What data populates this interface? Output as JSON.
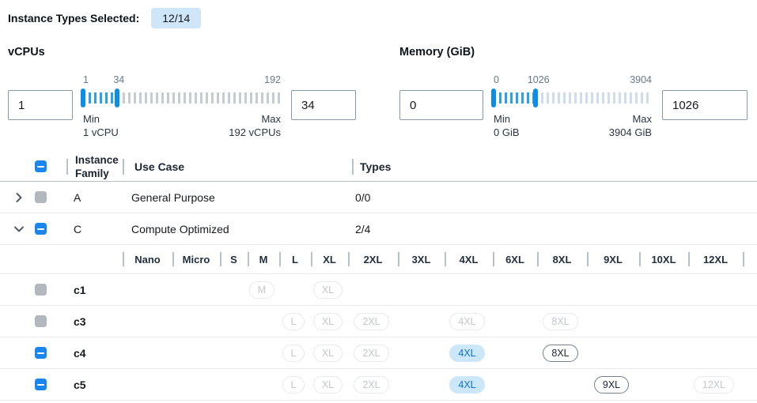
{
  "header": {
    "label": "Instance Types Selected:",
    "badge": "12/14"
  },
  "filters": [
    {
      "id": "vcpus",
      "title": "vCPUs",
      "low_input": "1",
      "high_input": "34",
      "range": {
        "min": 1,
        "max": 192,
        "low": 1,
        "high": 34
      },
      "scale": {
        "low": "1",
        "high": "34",
        "max": "192"
      },
      "min_label": "Min",
      "min_value": "1 vCPU",
      "max_label": "Max",
      "max_value": "192 vCPUs"
    },
    {
      "id": "memory",
      "title": "Memory (GiB)",
      "low_input": "0",
      "high_input": "1026",
      "range": {
        "min": 0,
        "max": 3904,
        "low": 0,
        "high": 1026
      },
      "scale": {
        "low": "0",
        "high": "1026",
        "max": "3904"
      },
      "min_label": "Min",
      "min_value": "0 GiB",
      "max_label": "Max",
      "max_value": "3904 GiB"
    }
  ],
  "table": {
    "columns": {
      "family": "Instance Family",
      "use_case": "Use Case",
      "types": "Types"
    },
    "size_columns": [
      "Nano",
      "Micro",
      "S",
      "M",
      "L",
      "XL",
      "2XL",
      "3XL",
      "4XL",
      "6XL",
      "8XL",
      "9XL",
      "10XL",
      "12XL"
    ],
    "rows": [
      {
        "type": "family",
        "name": "A",
        "use_case": "General Purpose",
        "types": "0/0",
        "expanded": false,
        "checkbox": "disabled"
      },
      {
        "type": "family",
        "name": "C",
        "use_case": "Compute Optimized",
        "types": "2/4",
        "expanded": true,
        "checkbox": "indeterminate"
      },
      {
        "type": "size_header"
      },
      {
        "type": "instance",
        "name": "c1",
        "checkbox": "disabled",
        "pills": {
          "M": "disabled",
          "XL": "disabled"
        }
      },
      {
        "type": "instance",
        "name": "c3",
        "checkbox": "disabled",
        "pills": {
          "L": "disabled",
          "XL": "disabled",
          "2XL": "disabled",
          "4XL": "disabled",
          "8XL": "disabled"
        }
      },
      {
        "type": "instance",
        "name": "c4",
        "checkbox": "indeterminate",
        "pills": {
          "L": "disabled",
          "XL": "disabled",
          "2XL": "disabled",
          "4XL": "selected",
          "8XL": "enabled"
        }
      },
      {
        "type": "instance",
        "name": "c5",
        "checkbox": "indeterminate",
        "pills": {
          "L": "disabled",
          "XL": "disabled",
          "2XL": "disabled",
          "4XL": "selected",
          "9XL": "enabled",
          "12XL": "disabled"
        }
      }
    ]
  },
  "colors": {
    "accent_blue": "#1b87ec",
    "slider_blue": "#0b8ee8",
    "selected_pill_bg": "#cde7fa",
    "selected_pill_text": "#0972d3",
    "badge_bg": "#cfe6f9"
  }
}
